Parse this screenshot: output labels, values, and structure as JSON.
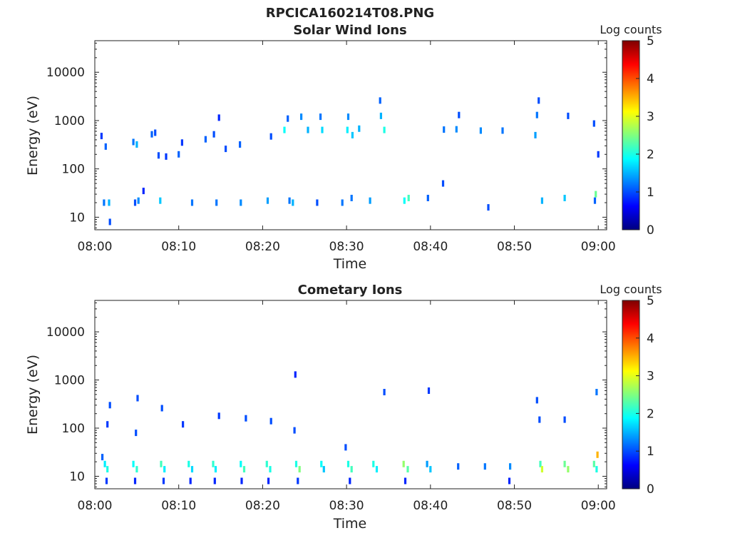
{
  "figure": {
    "filename": "RPCICA160214T08.PNG",
    "colorbar_label": "Log counts",
    "colorbar_ticks": [
      "0",
      "1",
      "2",
      "3",
      "4",
      "5"
    ],
    "colorbar_range": [
      0,
      5
    ]
  },
  "chart_data": [
    {
      "type": "heatmap",
      "title": "Solar Wind Ions",
      "xlabel": "Time",
      "ylabel": "Energy (eV)",
      "x_ticks": [
        "08:00",
        "08:10",
        "08:20",
        "08:30",
        "08:40",
        "08:50",
        "09:00"
      ],
      "x_range_minutes": [
        0,
        61
      ],
      "y_scale": "log",
      "y_ticks": [
        "10",
        "100",
        "1000",
        "10000"
      ],
      "y_range_eV": [
        5.5,
        45000
      ],
      "value_label": "Log counts",
      "value_range": [
        0,
        5
      ],
      "cells": [
        [
          1.1,
          20,
          1.2
        ],
        [
          1.7,
          20,
          1.5
        ],
        [
          1.8,
          8,
          1.0
        ],
        [
          1.3,
          290,
          1.1
        ],
        [
          0.8,
          480,
          0.9
        ],
        [
          4.8,
          20,
          1.0
        ],
        [
          5.2,
          22,
          1.3
        ],
        [
          5.0,
          320,
          1.5
        ],
        [
          4.6,
          360,
          1.2
        ],
        [
          5.8,
          35,
          0.8
        ],
        [
          6.8,
          520,
          1.1
        ],
        [
          7.2,
          560,
          1.0
        ],
        [
          7.8,
          22,
          1.6
        ],
        [
          7.6,
          190,
          1.0
        ],
        [
          8.5,
          180,
          0.9
        ],
        [
          10.0,
          200,
          1.1
        ],
        [
          10.4,
          350,
          0.9
        ],
        [
          11.6,
          20,
          1.2
        ],
        [
          13.2,
          410,
          1.1
        ],
        [
          14.2,
          520,
          1.0
        ],
        [
          14.5,
          20,
          1.2
        ],
        [
          14.8,
          1150,
          0.8
        ],
        [
          15.6,
          260,
          1.0
        ],
        [
          17.4,
          20,
          1.3
        ],
        [
          17.3,
          320,
          1.1
        ],
        [
          20.6,
          22,
          1.4
        ],
        [
          21.0,
          470,
          1.0
        ],
        [
          23.2,
          22,
          1.2
        ],
        [
          22.6,
          640,
          1.9
        ],
        [
          23.0,
          1100,
          1.1
        ],
        [
          23.6,
          20,
          1.5
        ],
        [
          24.6,
          1200,
          1.3
        ],
        [
          25.4,
          640,
          1.5
        ],
        [
          26.5,
          20,
          1.0
        ],
        [
          27.1,
          640,
          1.7
        ],
        [
          26.9,
          1200,
          1.2
        ],
        [
          29.5,
          20,
          1.2
        ],
        [
          30.1,
          640,
          1.8
        ],
        [
          30.7,
          500,
          1.6
        ],
        [
          30.2,
          1200,
          1.3
        ],
        [
          30.6,
          25,
          1.2
        ],
        [
          31.5,
          680,
          1.5
        ],
        [
          32.8,
          22,
          1.4
        ],
        [
          34.5,
          640,
          2.0
        ],
        [
          34.1,
          1250,
          1.5
        ],
        [
          34.0,
          2600,
          1.1
        ],
        [
          36.9,
          22,
          1.9
        ],
        [
          37.4,
          25,
          2.2
        ],
        [
          39.7,
          25,
          1.1
        ],
        [
          41.5,
          50,
          1.0
        ],
        [
          41.6,
          650,
          1.2
        ],
        [
          43.1,
          660,
          1.3
        ],
        [
          43.4,
          1300,
          1.0
        ],
        [
          46.0,
          620,
          1.3
        ],
        [
          46.9,
          16,
          1.0
        ],
        [
          48.6,
          620,
          1.2
        ],
        [
          52.5,
          500,
          1.4
        ],
        [
          52.7,
          1300,
          1.2
        ],
        [
          52.9,
          2600,
          1.0
        ],
        [
          53.3,
          22,
          1.5
        ],
        [
          56.0,
          25,
          1.6
        ],
        [
          56.4,
          1250,
          1.0
        ],
        [
          59.6,
          22,
          1.1
        ],
        [
          59.7,
          30,
          2.4
        ],
        [
          59.5,
          870,
          1.0
        ],
        [
          60.0,
          200,
          0.9
        ]
      ]
    },
    {
      "type": "heatmap",
      "title": "Cometary Ions",
      "xlabel": "Time",
      "ylabel": "Energy (eV)",
      "x_ticks": [
        "08:00",
        "08:10",
        "08:20",
        "08:30",
        "08:40",
        "08:50",
        "09:00"
      ],
      "x_range_minutes": [
        0,
        61
      ],
      "y_scale": "log",
      "y_ticks": [
        "10",
        "100",
        "1000",
        "10000"
      ],
      "y_range_eV": [
        5.5,
        45000
      ],
      "value_label": "Log counts",
      "value_range": [
        0,
        5
      ],
      "cells": [
        [
          1.2,
          18,
          1.8
        ],
        [
          1.5,
          14,
          2.0
        ],
        [
          0.9,
          25,
          1.1
        ],
        [
          1.4,
          8,
          0.9
        ],
        [
          1.8,
          300,
          1.0
        ],
        [
          1.5,
          120,
          0.9
        ],
        [
          4.6,
          18,
          1.9
        ],
        [
          5.0,
          14,
          2.1
        ],
        [
          4.8,
          8,
          0.8
        ],
        [
          4.9,
          80,
          1.0
        ],
        [
          5.1,
          420,
          1.0
        ],
        [
          7.9,
          18,
          2.2
        ],
        [
          8.3,
          14,
          1.8
        ],
        [
          8.2,
          8,
          0.9
        ],
        [
          8.0,
          260,
          1.0
        ],
        [
          11.2,
          18,
          2.0
        ],
        [
          11.6,
          14,
          1.7
        ],
        [
          11.4,
          8,
          0.8
        ],
        [
          10.5,
          120,
          0.9
        ],
        [
          14.1,
          18,
          2.1
        ],
        [
          14.4,
          14,
          1.8
        ],
        [
          14.3,
          8,
          0.8
        ],
        [
          14.8,
          180,
          0.9
        ],
        [
          17.4,
          18,
          1.9
        ],
        [
          17.8,
          14,
          2.2
        ],
        [
          17.5,
          8,
          0.8
        ],
        [
          18.0,
          160,
          1.0
        ],
        [
          20.5,
          18,
          2.1
        ],
        [
          20.9,
          14,
          2.0
        ],
        [
          20.7,
          8,
          0.8
        ],
        [
          21.0,
          140,
          1.0
        ],
        [
          24.0,
          18,
          2.0
        ],
        [
          24.4,
          14,
          2.5
        ],
        [
          24.2,
          8,
          0.9
        ],
        [
          23.8,
          90,
          1.0
        ],
        [
          23.9,
          1300,
          0.8
        ],
        [
          27.0,
          18,
          1.9
        ],
        [
          27.3,
          14,
          1.6
        ],
        [
          30.2,
          18,
          2.0
        ],
        [
          30.6,
          14,
          2.2
        ],
        [
          30.4,
          8,
          0.8
        ],
        [
          29.9,
          40,
          1.0
        ],
        [
          33.2,
          18,
          2.0
        ],
        [
          33.6,
          14,
          1.8
        ],
        [
          34.5,
          560,
          1.0
        ],
        [
          36.8,
          18,
          2.6
        ],
        [
          37.3,
          14,
          2.3
        ],
        [
          37.0,
          8,
          0.8
        ],
        [
          39.6,
          18,
          1.4
        ],
        [
          40.0,
          14,
          1.6
        ],
        [
          39.8,
          600,
          0.9
        ],
        [
          43.3,
          16,
          1.1
        ],
        [
          46.5,
          16,
          1.2
        ],
        [
          49.5,
          16,
          1.3
        ],
        [
          49.4,
          8,
          0.8
        ],
        [
          53.1,
          18,
          2.2
        ],
        [
          53.3,
          14,
          2.9
        ],
        [
          53.0,
          150,
          1.0
        ],
        [
          52.7,
          380,
          1.0
        ],
        [
          56.0,
          18,
          2.4
        ],
        [
          56.4,
          14,
          2.6
        ],
        [
          56.0,
          150,
          1.0
        ],
        [
          59.5,
          18,
          2.3
        ],
        [
          59.9,
          28,
          3.5
        ],
        [
          59.8,
          560,
          1.2
        ],
        [
          59.8,
          14,
          2.0
        ]
      ]
    }
  ]
}
